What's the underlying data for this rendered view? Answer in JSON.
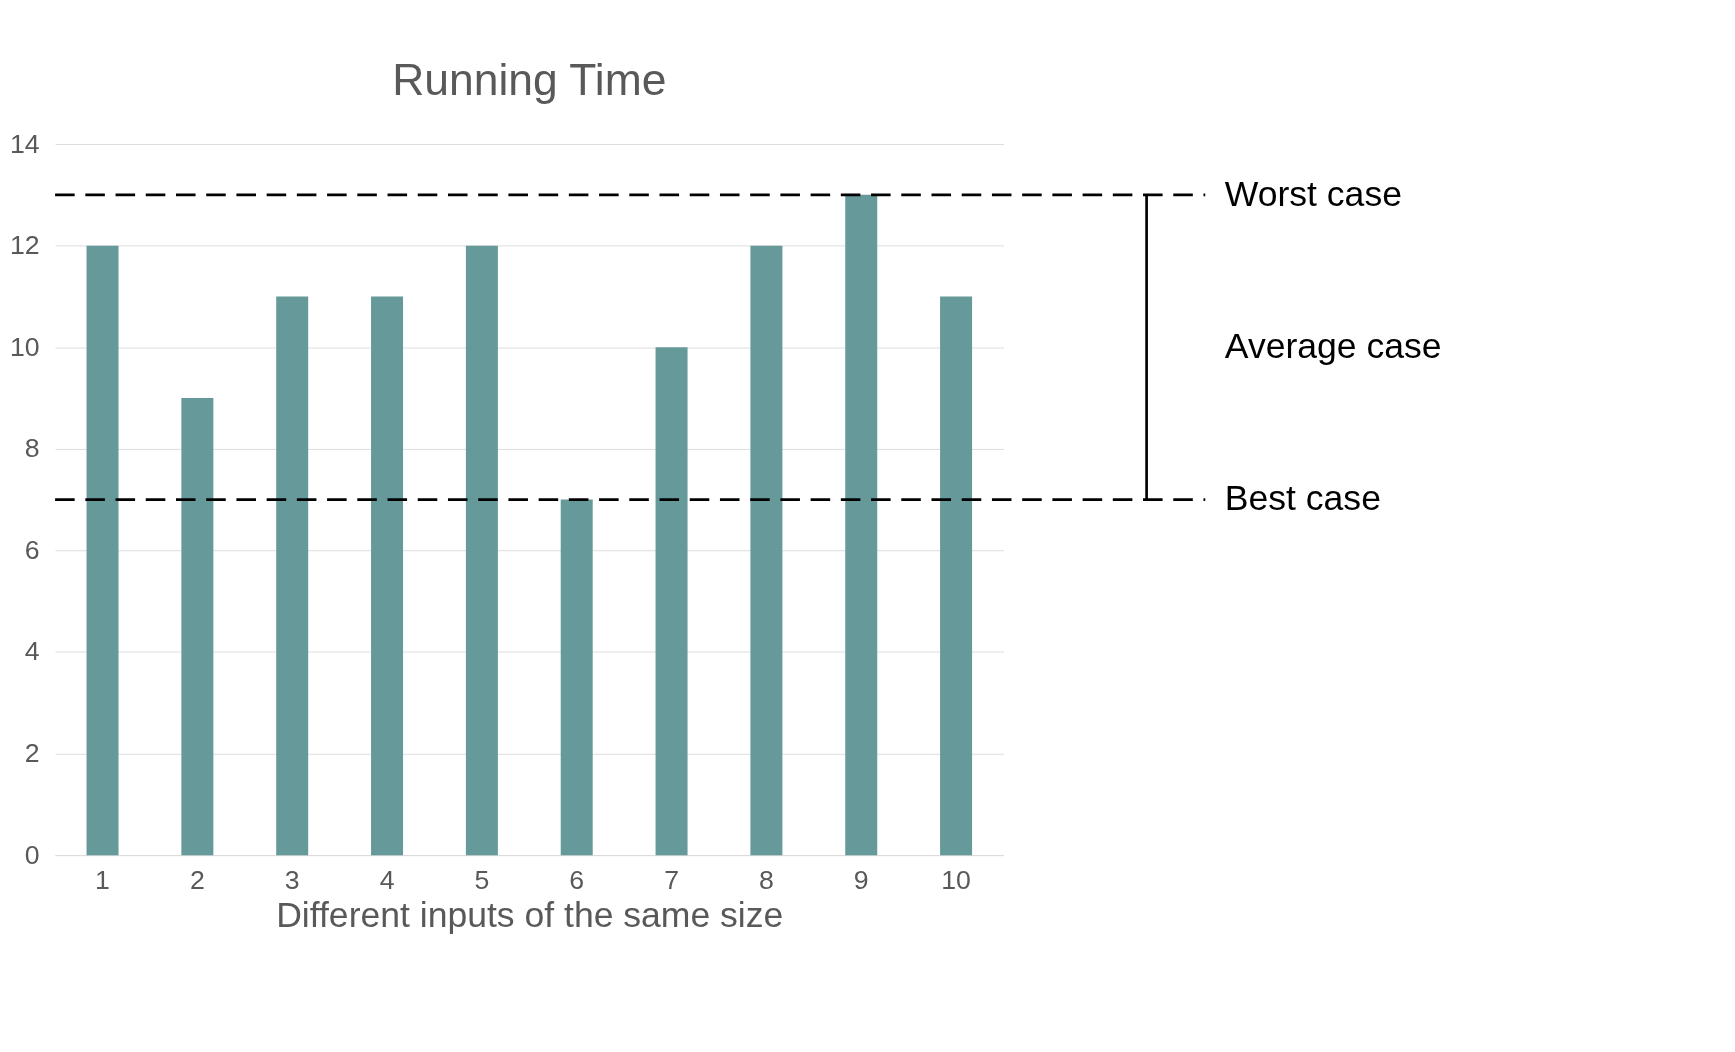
{
  "chart_data": {
    "type": "bar",
    "title": "Running Time",
    "xlabel": "Different inputs of the same size",
    "categories": [
      "1",
      "2",
      "3",
      "4",
      "5",
      "6",
      "7",
      "8",
      "9",
      "10"
    ],
    "values": [
      12,
      9,
      11,
      11,
      12,
      7,
      10,
      12,
      13,
      11
    ],
    "color": "#669999",
    "ylim": [
      0,
      14
    ],
    "yticks": [
      0,
      2,
      4,
      6,
      8,
      10,
      12,
      14
    ],
    "grid": "y",
    "ref_lines": [
      {
        "axis": "y",
        "value": 13,
        "label": "Worst case",
        "color": "#000000",
        "line_style": "dashed"
      },
      {
        "axis": "y",
        "value": 7,
        "label": "Best case",
        "color": "#000000",
        "line_style": "dashed"
      }
    ],
    "annotations": [
      "Average case"
    ]
  }
}
